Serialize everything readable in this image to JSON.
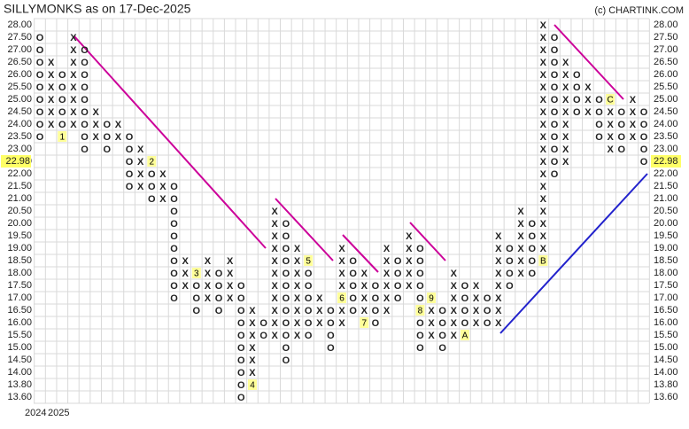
{
  "chart_data": {
    "type": "point-and-figure",
    "title": "SILLYMONKS as on 17-Dec-2025",
    "credit": "(c) CHARTINK.COM",
    "x_labels": [
      "2024",
      "2025"
    ],
    "x_color": "#2e8b2e",
    "o_color": "#e53222",
    "grid": true,
    "yticks": [
      {
        "value": 28,
        "label": "28.00"
      },
      {
        "value": 27.5,
        "label": "27.50"
      },
      {
        "value": 27,
        "label": "27.00"
      },
      {
        "value": 26.5,
        "label": "26.50"
      },
      {
        "value": 26,
        "label": "26.00"
      },
      {
        "value": 25.5,
        "label": "25.50"
      },
      {
        "value": 25,
        "label": "25.00"
      },
      {
        "value": 24.5,
        "label": "24.50"
      },
      {
        "value": 24,
        "label": "24.00"
      },
      {
        "value": 23.5,
        "label": "23.50"
      },
      {
        "value": 23,
        "label": "23.00"
      },
      {
        "value": 22.5,
        "label": "22.50"
      },
      {
        "value": 22,
        "label": "22.00"
      },
      {
        "value": 21.5,
        "label": "21.50"
      },
      {
        "value": 21,
        "label": "21.00"
      },
      {
        "value": 20.5,
        "label": "20.50"
      },
      {
        "value": 20,
        "label": "20.00"
      },
      {
        "value": 19.5,
        "label": "19.50"
      },
      {
        "value": 19,
        "label": "19.00"
      },
      {
        "value": 18.5,
        "label": "18.50"
      },
      {
        "value": 18,
        "label": "18.00"
      },
      {
        "value": 17.5,
        "label": "17.50"
      },
      {
        "value": 17,
        "label": "17.00"
      },
      {
        "value": 16.5,
        "label": "16.50"
      },
      {
        "value": 16,
        "label": "16.00"
      },
      {
        "value": 15.5,
        "label": "15.50"
      },
      {
        "value": 15,
        "label": "15.00"
      },
      {
        "value": 14.5,
        "label": "14.50"
      },
      {
        "value": 14,
        "label": "14.00"
      },
      {
        "value": 13.8,
        "label": "13.80"
      },
      {
        "value": 13.6,
        "label": "13.60"
      }
    ],
    "last_price": {
      "value": 22.98,
      "label": "22.98"
    },
    "columns": [
      {
        "type": "O",
        "high": 27.5,
        "low": 23.5
      },
      {
        "type": "X",
        "high": 26.5,
        "low": 24
      },
      {
        "type": "O",
        "high": 26,
        "low": 23.5,
        "marker": "1",
        "marker_at": 23.5
      },
      {
        "type": "X",
        "high": 27.5,
        "low": 24
      },
      {
        "type": "O",
        "high": 27,
        "low": 23
      },
      {
        "type": "X",
        "high": 24.5,
        "low": 23.5
      },
      {
        "type": "O",
        "high": 24,
        "low": 23
      },
      {
        "type": "X",
        "high": 24,
        "low": 23.5
      },
      {
        "type": "O",
        "high": 23.5,
        "low": 21.5
      },
      {
        "type": "X",
        "high": 23,
        "low": 21.5
      },
      {
        "type": "O",
        "high": 22.5,
        "low": 21,
        "marker": "2",
        "marker_at": 22.5
      },
      {
        "type": "X",
        "high": 22,
        "low": 21
      },
      {
        "type": "O",
        "high": 21.5,
        "low": 17
      },
      {
        "type": "X",
        "high": 18.5,
        "low": 17.5
      },
      {
        "type": "O",
        "high": 18,
        "low": 16.5,
        "marker": "3",
        "marker_at": 18
      },
      {
        "type": "X",
        "high": 18.5,
        "low": 17
      },
      {
        "type": "O",
        "high": 18,
        "low": 16.5
      },
      {
        "type": "X",
        "high": 18.5,
        "low": 17
      },
      {
        "type": "O",
        "high": 17.5,
        "low": 13.6
      },
      {
        "type": "X",
        "high": 16.5,
        "low": 13.8,
        "marker": "4",
        "marker_at": 13.8
      },
      {
        "type": "O",
        "high": 16,
        "low": 15.5
      },
      {
        "type": "X",
        "high": 20.5,
        "low": 15.5
      },
      {
        "type": "O",
        "high": 20,
        "low": 14.5
      },
      {
        "type": "X",
        "high": 19,
        "low": 15.5
      },
      {
        "type": "O",
        "high": 18.5,
        "low": 15.5,
        "marker": "5",
        "marker_at": 18.5
      },
      {
        "type": "X",
        "high": 17,
        "low": 16
      },
      {
        "type": "O",
        "high": 16.5,
        "low": 15
      },
      {
        "type": "X",
        "high": 19,
        "low": 16,
        "marker": "6",
        "marker_at": 17
      },
      {
        "type": "O",
        "high": 18.5,
        "low": 16.5
      },
      {
        "type": "X",
        "high": 18,
        "low": 16,
        "marker": "7",
        "marker_at": 16
      },
      {
        "type": "O",
        "high": 17.5,
        "low": 16
      },
      {
        "type": "X",
        "high": 19,
        "low": 16.5
      },
      {
        "type": "O",
        "high": 18.5,
        "low": 17
      },
      {
        "type": "X",
        "high": 19.5,
        "low": 17.5
      },
      {
        "type": "O",
        "high": 19,
        "low": 15,
        "marker": "8",
        "marker_at": 16.5
      },
      {
        "type": "X",
        "high": 17,
        "low": 15.5,
        "marker": "9",
        "marker_at": 17
      },
      {
        "type": "O",
        "high": 16.5,
        "low": 15
      },
      {
        "type": "X",
        "high": 18,
        "low": 15.5
      },
      {
        "type": "O",
        "high": 17.5,
        "low": 15.5,
        "marker": "A",
        "marker_at": 15.5
      },
      {
        "type": "X",
        "high": 17.5,
        "low": 16
      },
      {
        "type": "O",
        "high": 17,
        "low": 16
      },
      {
        "type": "X",
        "high": 19.5,
        "low": 16
      },
      {
        "type": "O",
        "high": 19,
        "low": 17.5
      },
      {
        "type": "X",
        "high": 20.5,
        "low": 18
      },
      {
        "type": "O",
        "high": 20,
        "low": 18
      },
      {
        "type": "X",
        "high": 28,
        "low": 18.5,
        "marker": "B",
        "marker_at": 18.5
      },
      {
        "type": "O",
        "high": 27.5,
        "low": 22
      },
      {
        "type": "X",
        "high": 26.5,
        "low": 22.5
      },
      {
        "type": "O",
        "high": 26,
        "low": 24.5
      },
      {
        "type": "X",
        "high": 25.5,
        "low": 24.5
      },
      {
        "type": "O",
        "high": 25,
        "low": 23.5
      },
      {
        "type": "X",
        "high": 25,
        "low": 23,
        "marker": "C",
        "marker_at": 25
      },
      {
        "type": "O",
        "high": 24.5,
        "low": 23
      },
      {
        "type": "X",
        "high": 25,
        "low": 23.5
      },
      {
        "type": "O",
        "high": 24.5,
        "low": 22.5
      }
    ]
  }
}
